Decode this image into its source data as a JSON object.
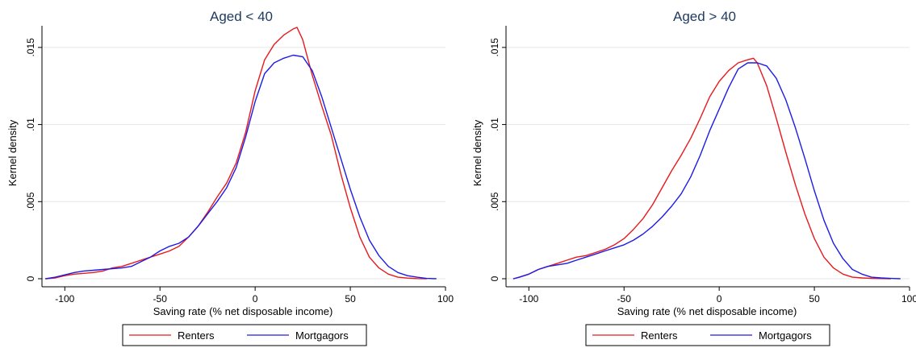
{
  "chart_data": [
    {
      "type": "line",
      "title": "Aged < 40",
      "xlabel": "Saving rate (% net disposable income)",
      "ylabel": "Kernel density",
      "xlim": [
        -112,
        100
      ],
      "ylim": [
        0,
        0.0163
      ],
      "x_ticks": [
        -100,
        -50,
        0,
        50,
        100
      ],
      "x_tick_labels": [
        "-100",
        "-50",
        "0",
        "50",
        "100"
      ],
      "y_ticks": [
        0,
        0.005,
        0.01,
        0.015
      ],
      "y_tick_labels": [
        "0",
        ".005",
        ".01",
        ".015"
      ],
      "grid": true,
      "legend_position": "bottom",
      "series": [
        {
          "name": "Renters",
          "color": "#e8191c",
          "x": [
            -110,
            -105,
            -100,
            -95,
            -90,
            -85,
            -80,
            -75,
            -70,
            -65,
            -60,
            -55,
            -50,
            -45,
            -40,
            -35,
            -30,
            -25,
            -20,
            -15,
            -10,
            -5,
            0,
            5,
            10,
            15,
            20,
            22,
            25,
            30,
            35,
            40,
            45,
            50,
            55,
            60,
            65,
            70,
            75,
            80,
            85,
            90
          ],
          "y": [
            0.0,
            5e-05,
            0.0002,
            0.0003,
            0.00035,
            0.0004,
            0.0005,
            0.0007,
            0.0008,
            0.001,
            0.0012,
            0.0014,
            0.0016,
            0.0018,
            0.0021,
            0.0027,
            0.0034,
            0.0043,
            0.0053,
            0.0062,
            0.0075,
            0.0095,
            0.0122,
            0.0142,
            0.0152,
            0.0158,
            0.0162,
            0.0163,
            0.0155,
            0.0132,
            0.0112,
            0.0093,
            0.0068,
            0.0046,
            0.0027,
            0.0014,
            0.0007,
            0.0003,
            0.0001,
            4e-05,
            1e-05,
            0.0
          ]
        },
        {
          "name": "Mortgagors",
          "color": "#1c1ce6",
          "x": [
            -110,
            -105,
            -100,
            -95,
            -90,
            -85,
            -80,
            -75,
            -70,
            -65,
            -60,
            -55,
            -50,
            -45,
            -40,
            -35,
            -30,
            -25,
            -20,
            -15,
            -10,
            -5,
            0,
            5,
            10,
            15,
            20,
            25,
            30,
            35,
            40,
            45,
            50,
            55,
            60,
            65,
            70,
            75,
            80,
            85,
            90,
            95
          ],
          "y": [
            0.0,
            0.0001,
            0.00025,
            0.0004,
            0.0005,
            0.00055,
            0.0006,
            0.00065,
            0.0007,
            0.0008,
            0.0011,
            0.0014,
            0.0018,
            0.0021,
            0.0023,
            0.0027,
            0.0034,
            0.0042,
            0.005,
            0.0059,
            0.0072,
            0.0092,
            0.0115,
            0.0133,
            0.014,
            0.0143,
            0.0145,
            0.0144,
            0.0135,
            0.0118,
            0.0098,
            0.0078,
            0.0058,
            0.004,
            0.0025,
            0.0015,
            0.0008,
            0.0004,
            0.0002,
            0.0001,
            2e-05,
            0.0
          ]
        }
      ]
    },
    {
      "type": "line",
      "title": "Aged > 40",
      "xlabel": "Saving rate (% net disposable income)",
      "ylabel": "Kernel density",
      "xlim": [
        -112,
        100
      ],
      "ylim": [
        0,
        0.0163
      ],
      "x_ticks": [
        -100,
        -50,
        0,
        50,
        100
      ],
      "x_tick_labels": [
        "-100",
        "-50",
        "0",
        "50",
        "100"
      ],
      "y_ticks": [
        0,
        0.005,
        0.01,
        0.015
      ],
      "y_tick_labels": [
        "0",
        ".005",
        ".01",
        ".015"
      ],
      "grid": true,
      "legend_position": "bottom",
      "series": [
        {
          "name": "Renters",
          "color": "#e8191c",
          "x": [
            -108,
            -105,
            -100,
            -95,
            -90,
            -85,
            -80,
            -75,
            -70,
            -65,
            -60,
            -55,
            -50,
            -45,
            -40,
            -35,
            -30,
            -25,
            -20,
            -15,
            -10,
            -5,
            0,
            5,
            10,
            15,
            18,
            20,
            25,
            30,
            35,
            40,
            45,
            50,
            55,
            60,
            65,
            70,
            75,
            80,
            85,
            90
          ],
          "y": [
            0.0,
            0.0001,
            0.0003,
            0.0006,
            0.0008,
            0.001,
            0.0012,
            0.0014,
            0.0015,
            0.0017,
            0.0019,
            0.0022,
            0.0026,
            0.0032,
            0.0039,
            0.0048,
            0.0059,
            0.007,
            0.008,
            0.0091,
            0.0104,
            0.0118,
            0.0128,
            0.0135,
            0.014,
            0.0142,
            0.0143,
            0.014,
            0.0125,
            0.0104,
            0.0082,
            0.0061,
            0.0042,
            0.0026,
            0.0014,
            0.0007,
            0.0003,
            0.0001,
            5e-05,
            2e-05,
            1e-05,
            0.0
          ]
        },
        {
          "name": "Mortgagors",
          "color": "#1c1ce6",
          "x": [
            -108,
            -105,
            -100,
            -95,
            -90,
            -85,
            -80,
            -75,
            -70,
            -65,
            -60,
            -55,
            -50,
            -45,
            -40,
            -35,
            -30,
            -25,
            -20,
            -15,
            -10,
            -5,
            0,
            5,
            10,
            15,
            20,
            25,
            30,
            35,
            40,
            45,
            50,
            55,
            60,
            65,
            70,
            75,
            80,
            85,
            90,
            95
          ],
          "y": [
            0.0,
            0.0001,
            0.0003,
            0.0006,
            0.0008,
            0.0009,
            0.001,
            0.0012,
            0.0014,
            0.0016,
            0.0018,
            0.002,
            0.0022,
            0.0025,
            0.0029,
            0.0034,
            0.004,
            0.0047,
            0.0055,
            0.0066,
            0.008,
            0.0096,
            0.011,
            0.0124,
            0.0136,
            0.014,
            0.014,
            0.0138,
            0.013,
            0.0116,
            0.0098,
            0.0078,
            0.0057,
            0.0038,
            0.0023,
            0.0013,
            0.0006,
            0.0003,
            0.0001,
            5e-05,
            2e-05,
            0.0
          ]
        }
      ]
    }
  ]
}
